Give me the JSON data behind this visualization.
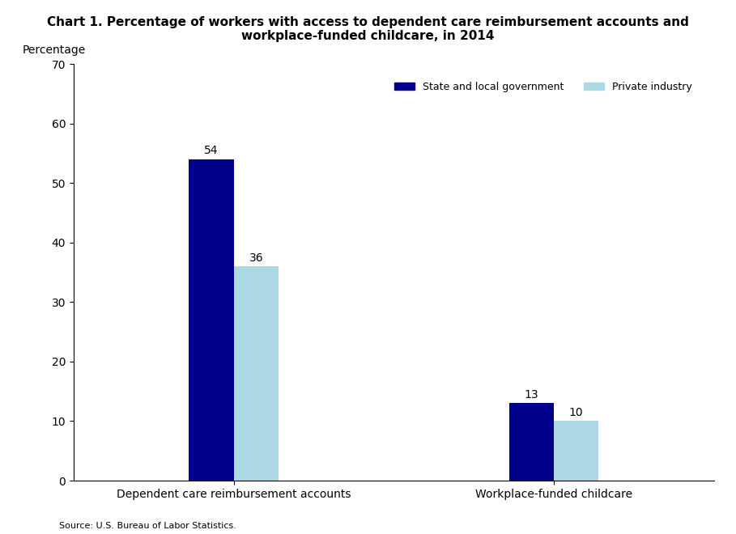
{
  "title_line1": "Chart 1. Percentage of workers with access to dependent care reimbursement accounts and",
  "title_line2": "workplace-funded childcare, in 2014",
  "ylabel": "Percentage",
  "source": "Source: U.S. Bureau of Labor Statistics.",
  "categories": [
    "Dependent care reimbursement accounts",
    "Workplace-funded childcare"
  ],
  "series": {
    "State and local government": [
      54,
      13
    ],
    "Private industry": [
      36,
      10
    ]
  },
  "bar_colors": {
    "State and local government": "#00008B",
    "Private industry": "#ADD8E6"
  },
  "ylim": [
    0,
    70
  ],
  "yticks": [
    0,
    10,
    20,
    30,
    40,
    50,
    60,
    70
  ],
  "bar_width": 0.28,
  "title_color": "#000000",
  "ylabel_color": "#000000",
  "source_color": "#000000",
  "legend_labels": [
    "State and local government",
    "Private industry"
  ],
  "group_positions": [
    0.25,
    0.72
  ]
}
